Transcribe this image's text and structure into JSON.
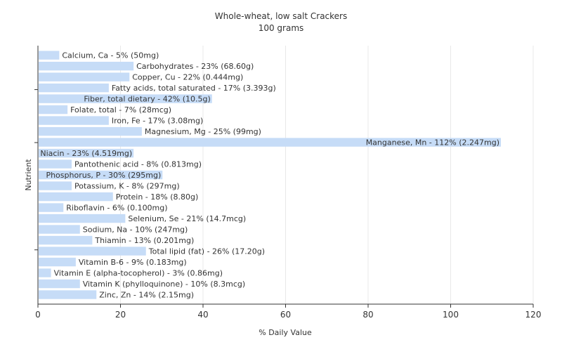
{
  "chart_data": {
    "type": "bar",
    "orientation": "horizontal",
    "title": "Whole-wheat, low salt Crackers",
    "subtitle": "100 grams",
    "xlabel": "% Daily Value",
    "ylabel": "Nutrient",
    "xlim": [
      0,
      120
    ],
    "xticks": [
      0,
      20,
      40,
      60,
      80,
      100,
      120
    ],
    "grid": true,
    "bar_color": "#c6dcf7",
    "gridline_color": "#e8e8e8",
    "categories": [
      "Calcium, Ca",
      "Carbohydrates",
      "Copper, Cu",
      "Fatty acids, total saturated",
      "Fiber, total dietary",
      "Folate, total",
      "Iron, Fe",
      "Magnesium, Mg",
      "Manganese, Mn",
      "Niacin",
      "Pantothenic acid",
      "Phosphorus, P",
      "Potassium, K",
      "Protein",
      "Riboflavin",
      "Selenium, Se",
      "Sodium, Na",
      "Thiamin",
      "Total lipid (fat)",
      "Vitamin B-6",
      "Vitamin E (alpha-tocopherol)",
      "Vitamin K (phylloquinone)",
      "Zinc, Zn"
    ],
    "values": [
      5,
      23,
      22,
      17,
      42,
      7,
      17,
      25,
      112,
      23,
      8,
      30,
      8,
      18,
      6,
      21,
      10,
      13,
      26,
      9,
      3,
      10,
      14
    ],
    "labels": [
      "Calcium, Ca - 5% (50mg)",
      "Carbohydrates - 23% (68.60g)",
      "Copper, Cu - 22% (0.444mg)",
      "Fatty acids, total saturated - 17% (3.393g)",
      "Fiber, total dietary - 42% (10.5g)",
      "Folate, total - 7% (28mcg)",
      "Iron, Fe - 17% (3.08mg)",
      "Magnesium, Mg - 25% (99mg)",
      "Manganese, Mn - 112% (2.247mg)",
      "Niacin - 23% (4.519mg)",
      "Pantothenic acid - 8% (0.813mg)",
      "Phosphorus, P - 30% (295mg)",
      "Potassium, K - 8% (297mg)",
      "Protein - 18% (8.80g)",
      "Riboflavin - 6% (0.100mg)",
      "Selenium, Se - 21% (14.7mcg)",
      "Sodium, Na - 10% (247mg)",
      "Thiamin - 13% (0.201mg)",
      "Total lipid (fat) - 26% (17.20g)",
      "Vitamin B-6 - 9% (0.183mg)",
      "Vitamin E (alpha-tocopherol) - 3% (0.86mg)",
      "Vitamin K (phylloquinone) - 10% (8.3mcg)",
      "Zinc, Zn - 14% (2.15mg)"
    ]
  }
}
